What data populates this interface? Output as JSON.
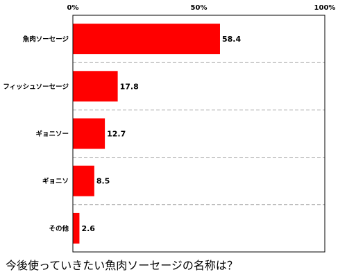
{
  "chart_data": {
    "type": "bar",
    "orientation": "horizontal",
    "categories": [
      "魚肉ソーセージ",
      "フィッシュソーセージ",
      "ギョニソー",
      "ギョニソ",
      "その他"
    ],
    "values": [
      58.4,
      17.8,
      12.7,
      8.5,
      2.6
    ],
    "value_labels": [
      "58.4",
      "17.8",
      "12.7",
      "8.5",
      "2.6"
    ],
    "x_ticks": [
      {
        "value": 0,
        "label": "0%"
      },
      {
        "value": 50,
        "label": "50%"
      },
      {
        "value": 100,
        "label": "100%"
      }
    ],
    "xlim": [
      0,
      100
    ],
    "title": "",
    "xlabel": "",
    "ylabel": "",
    "grid": "dashed horizontal separators between categories",
    "legend": "none",
    "bar_color": "#ff0000"
  },
  "caption": "今後使っていきたい魚肉ソーセージの名称は？"
}
